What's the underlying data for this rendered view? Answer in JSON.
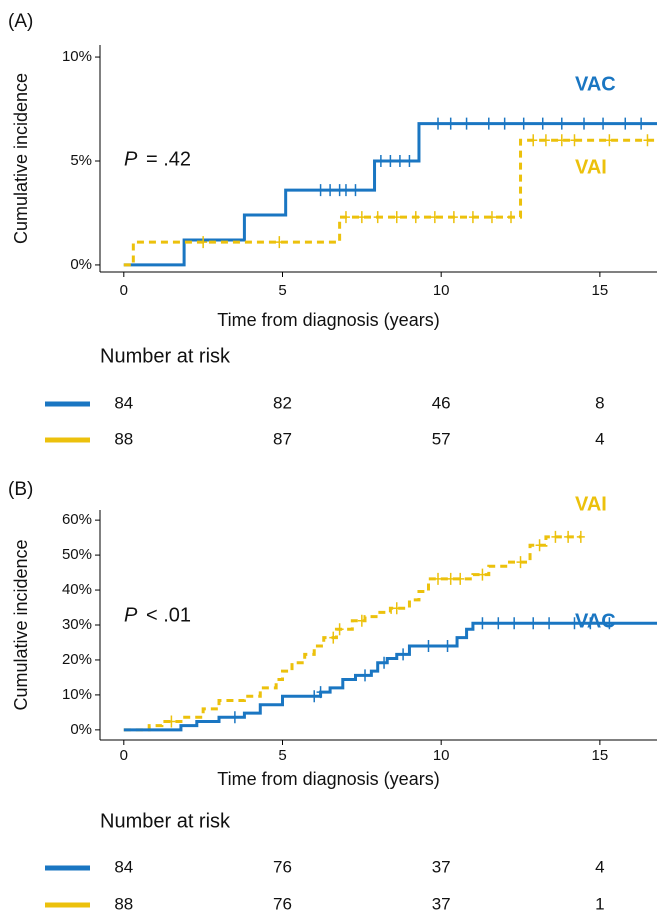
{
  "chart_data": [
    {
      "type": "step",
      "panel_label": "(A)",
      "xlabel": "Time from diagnosis (years)",
      "ylabel": "Cumulative incidence",
      "annotation": {
        "italic": "P",
        "text": "= .42"
      },
      "xlim": [
        -0.75,
        16.8
      ],
      "xticks": [
        0,
        5,
        10,
        15
      ],
      "ylim": [
        -0.34,
        10.58
      ],
      "yticks": [
        {
          "value": 0,
          "label": "0%"
        },
        {
          "value": 5,
          "label": "5%"
        },
        {
          "value": 10,
          "label": "10%"
        }
      ],
      "series": [
        {
          "name": "VAC",
          "color": "#1a76c2",
          "dashed": false,
          "x": [
            0,
            1.9,
            3.8,
            5.1,
            7.9,
            9.3,
            16.8
          ],
          "values": [
            0,
            1.2,
            2.4,
            3.6,
            5.0,
            6.8,
            6.8
          ],
          "censor_x": [
            6.2,
            6.5,
            6.8,
            7.0,
            7.3,
            8.1,
            8.4,
            8.7,
            9.0,
            9.9,
            10.3,
            10.8,
            11.5,
            12.0,
            12.6,
            13.2,
            13.8,
            14.5,
            15.1,
            15.8,
            16.3
          ]
        },
        {
          "name": "VAI",
          "color": "#ecc10c",
          "dashed": true,
          "x": [
            0,
            0.3,
            6.8,
            12.5,
            16.8
          ],
          "values": [
            0,
            1.1,
            2.3,
            6.0,
            6.0
          ],
          "censor_x": [
            2.5,
            4.9,
            7.0,
            7.5,
            8.0,
            8.6,
            9.2,
            9.8,
            10.4,
            11.0,
            11.6,
            12.2,
            12.9,
            13.3,
            13.8,
            14.2,
            15.3,
            16.5
          ]
        }
      ],
      "risk": {
        "title": "Number at risk",
        "rows": [
          {
            "color": "#1a76c2",
            "values": [
              84,
              82,
              46,
              8
            ]
          },
          {
            "color": "#ecc10c",
            "values": [
              88,
              87,
              57,
              4
            ]
          }
        ]
      }
    },
    {
      "type": "step",
      "panel_label": "(B)",
      "xlabel": "Time from diagnosis (years)",
      "ylabel": "Cumulative incidence",
      "annotation": {
        "italic": "P",
        "text": "< .01"
      },
      "xlim": [
        -0.75,
        16.8
      ],
      "xticks": [
        0,
        5,
        10,
        15
      ],
      "ylim": [
        -2.9,
        62.9
      ],
      "yticks": [
        {
          "value": 0,
          "label": "0%"
        },
        {
          "value": 10,
          "label": "10%"
        },
        {
          "value": 20,
          "label": "20%"
        },
        {
          "value": 30,
          "label": "30%"
        },
        {
          "value": 40,
          "label": "40%"
        },
        {
          "value": 50,
          "label": "50%"
        },
        {
          "value": 60,
          "label": "60%"
        }
      ],
      "series": [
        {
          "name": "VAI",
          "color": "#ecc10c",
          "dashed": true,
          "x": [
            0,
            0.8,
            1.2,
            1.8,
            2.5,
            3.0,
            3.8,
            4.3,
            4.8,
            5.0,
            5.3,
            5.7,
            6.0,
            6.3,
            6.7,
            7.2,
            7.6,
            8.0,
            8.4,
            9.0,
            9.3,
            9.6,
            11.0,
            11.5,
            12.1,
            12.8,
            13.3,
            14.4
          ],
          "values": [
            0,
            1.2,
            2.4,
            3.6,
            6.0,
            8.4,
            9.6,
            12.0,
            14.4,
            16.8,
            19.2,
            21.6,
            24.0,
            26.4,
            28.8,
            31.2,
            32.4,
            33.6,
            34.8,
            37.2,
            39.6,
            43.2,
            44.4,
            46.8,
            48.0,
            52.8,
            55.2,
            55.2
          ],
          "censor_x": [
            1.5,
            6.6,
            6.8,
            7.5,
            8.6,
            9.9,
            10.3,
            10.6,
            11.3,
            12.5,
            13.1,
            13.6,
            14.0,
            14.4
          ]
        },
        {
          "name": "VAC",
          "color": "#1a76c2",
          "dashed": false,
          "x": [
            0,
            1.8,
            2.3,
            3.0,
            3.8,
            4.3,
            5.0,
            6.2,
            6.5,
            6.9,
            7.3,
            7.8,
            8.0,
            8.3,
            8.6,
            9.0,
            10.5,
            10.8,
            11.0,
            16.8
          ],
          "values": [
            0,
            1.2,
            2.4,
            3.6,
            4.8,
            7.2,
            9.6,
            10.8,
            12.0,
            14.4,
            15.6,
            16.8,
            19.2,
            20.4,
            21.6,
            24.0,
            26.4,
            28.8,
            30.5,
            30.5
          ],
          "censor_x": [
            3.5,
            6.0,
            6.2,
            7.6,
            8.2,
            8.8,
            9.6,
            10.2,
            11.3,
            11.8,
            12.3,
            12.9,
            13.4,
            14.2,
            14.7,
            15.3
          ]
        }
      ],
      "risk": {
        "title": "Number at risk",
        "rows": [
          {
            "color": "#1a76c2",
            "values": [
              84,
              76,
              37,
              4
            ]
          },
          {
            "color": "#ecc10c",
            "values": [
              88,
              76,
              37,
              1
            ]
          }
        ]
      }
    }
  ]
}
